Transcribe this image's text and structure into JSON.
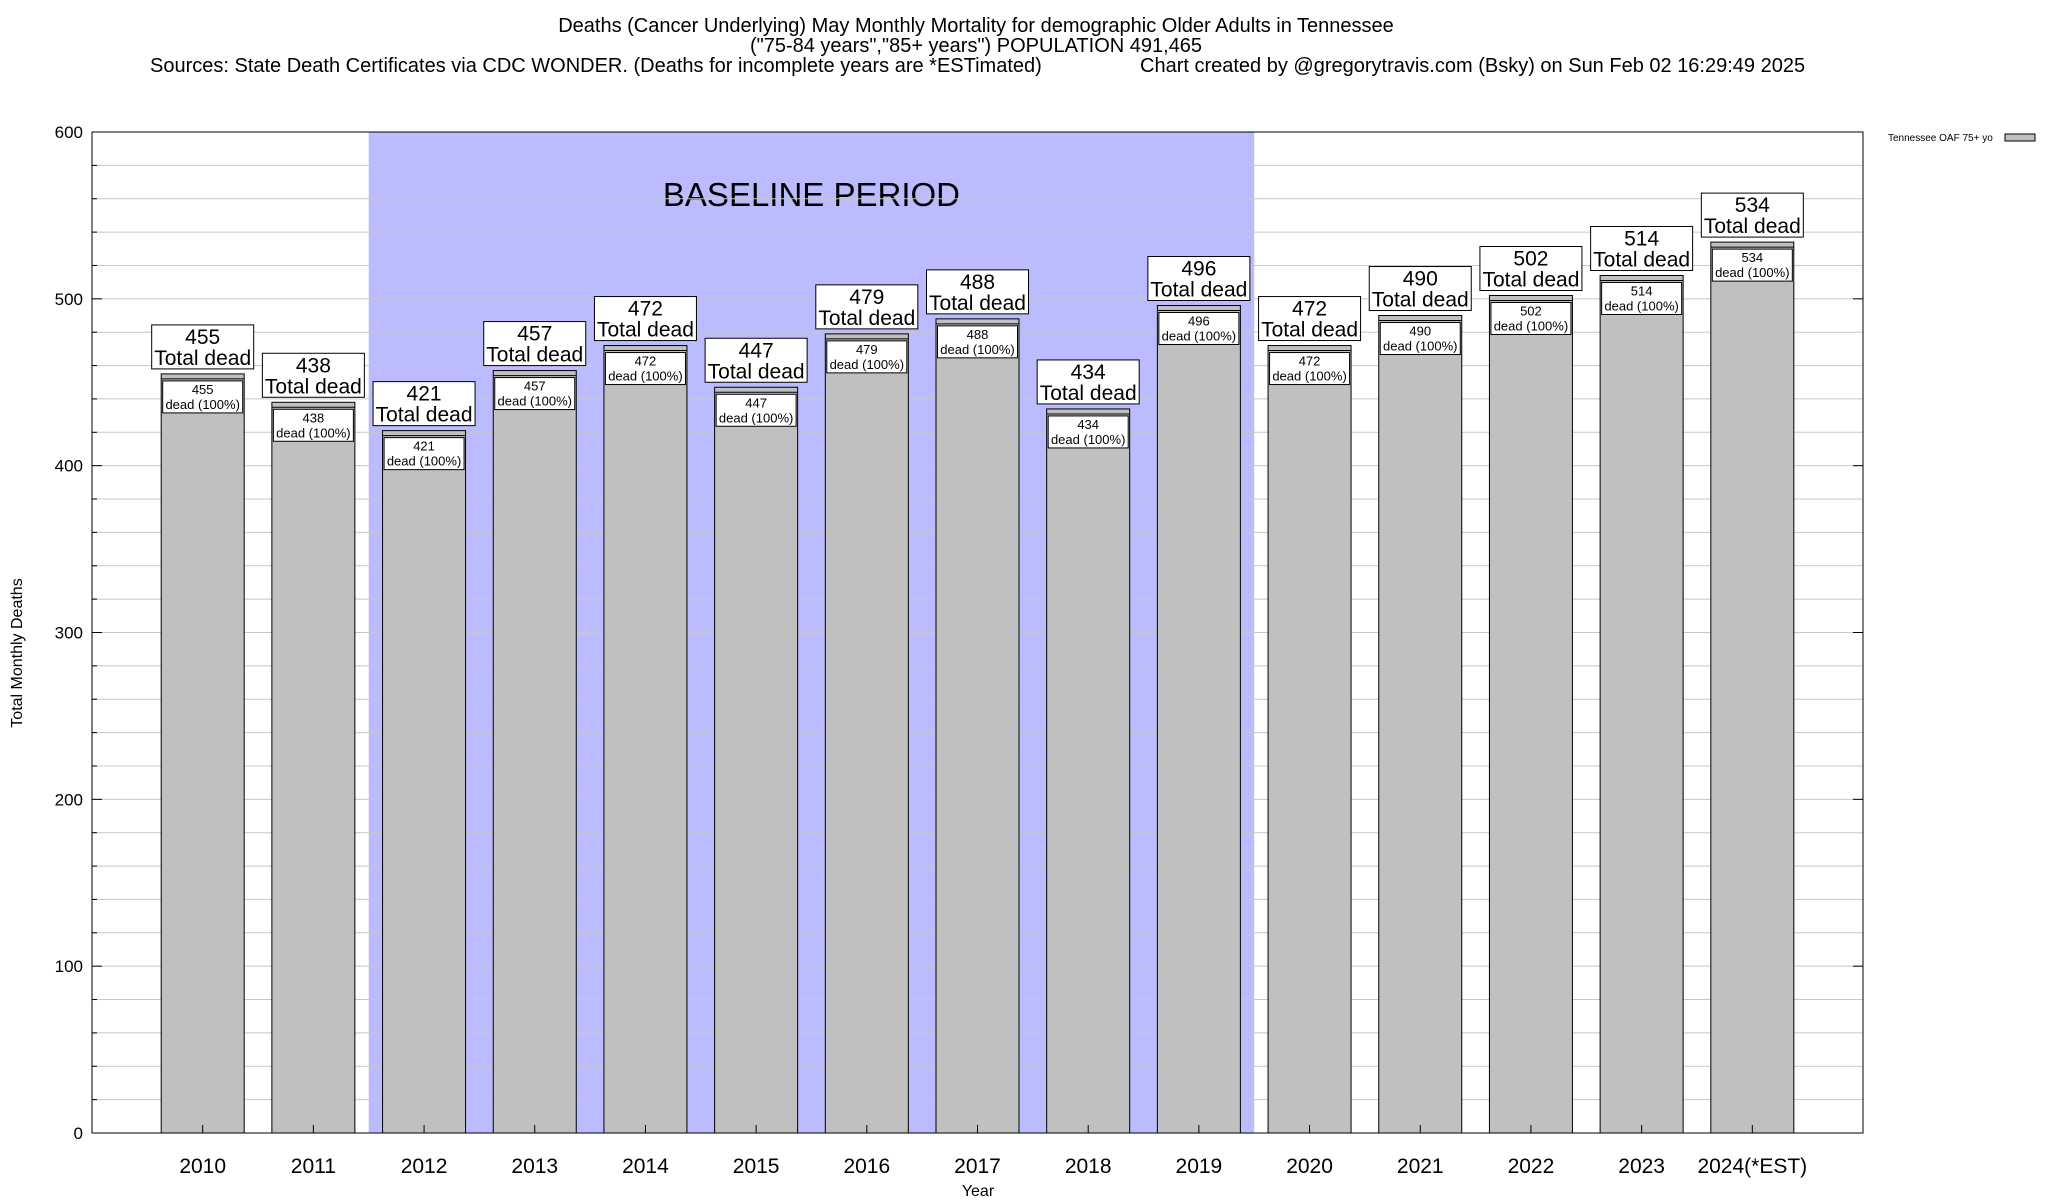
{
  "chart_data": {
    "type": "bar",
    "title": "Deaths (Cancer Underlying) May Monthly Mortality for demographic Older Adults in Tennessee",
    "subtitle": "(\"75-84 years\",\"85+ years\") POPULATION 491,465",
    "sources": "Sources: State Death Certificates via CDC WONDER. (Deaths for incomplete years are *ESTimated)",
    "credit": "Chart created by @gregorytravis.com (Bsky) on Sun Feb 02 16:29:49 2025",
    "xlabel": "Year",
    "ylabel": "Total Monthly Deaths",
    "ylim": [
      0,
      600
    ],
    "y_ticks": [
      "0",
      "100",
      "200",
      "300",
      "400",
      "500",
      "600"
    ],
    "categories": [
      "2010",
      "2011",
      "2012",
      "2013",
      "2014",
      "2015",
      "2016",
      "2017",
      "2018",
      "2019",
      "2020",
      "2021",
      "2022",
      "2023",
      "2024(*EST)"
    ],
    "series": [
      {
        "name": "Tennessee OAF 75+ yo",
        "values": [
          455,
          438,
          421,
          457,
          472,
          447,
          479,
          488,
          434,
          496,
          472,
          490,
          502,
          514,
          534
        ]
      }
    ],
    "top_labels": [
      "455",
      "438",
      "421",
      "457",
      "472",
      "447",
      "479",
      "488",
      "434",
      "496",
      "472",
      "490",
      "502",
      "514",
      "534"
    ],
    "top_label_suffix": "Total dead",
    "inner_labels": [
      "455",
      "438",
      "421",
      "457",
      "472",
      "447",
      "479",
      "488",
      "434",
      "496",
      "472",
      "490",
      "502",
      "514",
      "534"
    ],
    "inner_label_suffix": "dead (100%)",
    "baseline_band": {
      "label": "BASELINE PERIOD",
      "from": "2012",
      "to": "2019",
      "color": "#bbbbff"
    },
    "colors": {
      "bar_fill": "#c0c0c0",
      "bar_stroke": "#000000",
      "grid": "#c8c8c8"
    },
    "grid": true,
    "legend_position": "top-right"
  }
}
